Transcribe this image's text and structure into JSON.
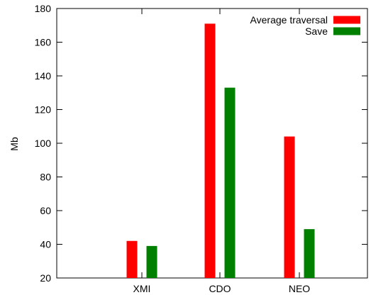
{
  "chart_data": {
    "type": "bar",
    "title": "",
    "xlabel": "",
    "ylabel": "Mb",
    "ylim": [
      20,
      180
    ],
    "yticks": [
      20,
      40,
      60,
      80,
      100,
      120,
      140,
      160,
      180
    ],
    "categories": [
      "XMI",
      "CDO",
      "NEO"
    ],
    "series": [
      {
        "name": "Average traversal",
        "color": "#ff0000",
        "values": [
          42,
          171,
          104
        ]
      },
      {
        "name": "Save",
        "color": "#008000",
        "values": [
          39,
          133,
          49
        ]
      }
    ],
    "grid": false,
    "legend": "top-right"
  }
}
